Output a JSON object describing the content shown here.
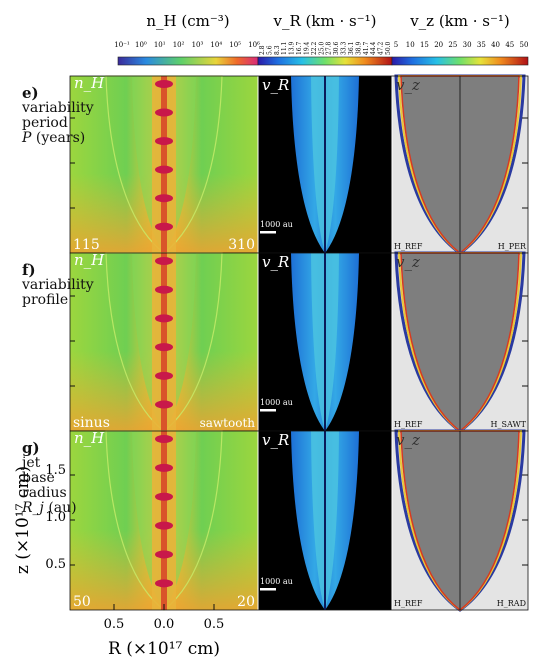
{
  "colorbars": [
    {
      "title": "n_H (cm⁻³)",
      "ticks": [
        "10⁻¹",
        "10⁰",
        "10¹",
        "10²",
        "10³",
        "10⁴",
        "10⁵",
        "10⁶"
      ]
    },
    {
      "title": "v_R (km · s⁻¹)",
      "ticks": [
        "2.8",
        "5.6",
        "8.3",
        "11.1",
        "13.9",
        "16.7",
        "19.4",
        "22.2",
        "25.0",
        "27.8",
        "30.6",
        "33.3",
        "36.1",
        "38.9",
        "41.7",
        "44.4",
        "47.2",
        "50.0"
      ]
    },
    {
      "title": "v_z (km · s⁻¹)",
      "ticks": [
        "5",
        "10",
        "15",
        "20",
        "25",
        "30",
        "35",
        "40",
        "45",
        "50"
      ]
    }
  ],
  "rows": [
    {
      "letter": "e)",
      "lines": [
        "variability",
        "period"
      ],
      "param": "P",
      "param_unit": "(years)",
      "left_value": "115",
      "right_value": "310",
      "ref_label": "H_REF",
      "run_label": "H_PER",
      "scalebar": "1000 au"
    },
    {
      "letter": "f)",
      "lines": [
        "variability",
        "profile"
      ],
      "param": "",
      "param_unit": "",
      "left_value": "sinus",
      "right_value": "sawtooth",
      "ref_label": "H_REF",
      "run_label": "H_SAWT",
      "scalebar": "1000 au"
    },
    {
      "letter": "g)",
      "lines": [
        "jet",
        "base",
        "radius"
      ],
      "param": "R_j",
      "param_unit": "(au)",
      "left_value": "50",
      "right_value": "20",
      "ref_label": "H_REF",
      "run_label": "H_RAD",
      "scalebar": "1000 au"
    }
  ],
  "panel_labels": [
    "n_H",
    "v_R",
    "v_z"
  ],
  "axes": {
    "xlabel": "R (×10¹⁷ cm)",
    "ylabel": "z (×10¹⁷ cm)",
    "xticks": [
      "0.5",
      "0.0",
      "0.5"
    ],
    "yticks": [
      "0.5",
      "1.0",
      "1.5"
    ]
  }
}
